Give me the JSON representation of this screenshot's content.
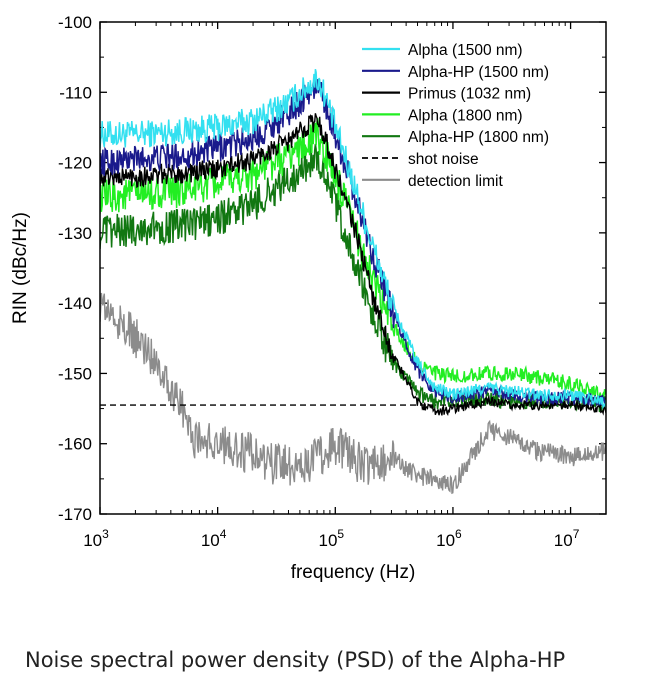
{
  "caption": "Noise spectral power density (PSD) of the Alpha-HP",
  "chart_data": {
    "type": "line",
    "xlabel": "frequency (Hz)",
    "ylabel": "RIN (dBc/Hz)",
    "xscale": "log",
    "xlim": [
      1000,
      20000000
    ],
    "ylim": [
      -170,
      -100
    ],
    "yticks": [
      -100,
      -110,
      -120,
      -130,
      -140,
      -150,
      -160,
      -170
    ],
    "xticks": [
      {
        "value": 1000,
        "base": "10",
        "exp": "3"
      },
      {
        "value": 10000,
        "base": "10",
        "exp": "4"
      },
      {
        "value": 100000,
        "base": "10",
        "exp": "5"
      },
      {
        "value": 1000000,
        "base": "10",
        "exp": "6"
      },
      {
        "value": 10000000,
        "base": "10",
        "exp": "7"
      }
    ],
    "grid": false,
    "legend_position": "top-right",
    "series": [
      {
        "name": "Alpha (1500 nm)",
        "color": "#33e0f0",
        "width": 1.5,
        "dash": "",
        "noise": 2.0,
        "x": [
          1000,
          2000,
          5000,
          10000,
          20000,
          40000,
          60000,
          70000,
          80000,
          100000,
          150000,
          200000,
          300000,
          500000,
          700000,
          1000000,
          2000000,
          3000000,
          5000000,
          10000000,
          20000000
        ],
        "y": [
          -116,
          -116,
          -115.5,
          -115,
          -114,
          -111.5,
          -109,
          -108,
          -110,
          -115,
          -124,
          -131,
          -140,
          -148.5,
          -152,
          -153,
          -152,
          -152.5,
          -153,
          -153,
          -154
        ]
      },
      {
        "name": "Alpha-HP (1500 nm)",
        "color": "#1a1a8c",
        "width": 1.5,
        "dash": "",
        "noise": 2.0,
        "x": [
          1000,
          2000,
          5000,
          10000,
          20000,
          40000,
          60000,
          70000,
          80000,
          100000,
          150000,
          200000,
          300000,
          500000,
          700000,
          1000000,
          2000000,
          3000000,
          5000000,
          10000000,
          20000000
        ],
        "y": [
          -120,
          -119.5,
          -119,
          -118,
          -116.5,
          -113,
          -110,
          -109,
          -111,
          -116,
          -125,
          -132,
          -141,
          -149.5,
          -152.5,
          -153.5,
          -152.5,
          -153,
          -153.5,
          -153.5,
          -154
        ]
      },
      {
        "name": "Primus (1032 nm)",
        "color": "#000000",
        "width": 1.4,
        "dash": "",
        "noise": 1.5,
        "x": [
          1000,
          2000,
          5000,
          10000,
          20000,
          40000,
          60000,
          70000,
          80000,
          100000,
          150000,
          200000,
          300000,
          500000,
          700000,
          1000000,
          2000000,
          3000000,
          5000000,
          10000000,
          20000000
        ],
        "y": [
          -122,
          -122,
          -121.5,
          -121,
          -119.5,
          -117,
          -114.5,
          -114,
          -116,
          -121,
          -130,
          -138,
          -147,
          -154,
          -155.5,
          -155,
          -154,
          -154.5,
          -154.5,
          -154.5,
          -155
        ]
      },
      {
        "name": "Alpha (1800 nm)",
        "color": "#22ee22",
        "width": 1.5,
        "dash": "",
        "noise": 2.5,
        "x": [
          1000,
          2000,
          5000,
          10000,
          20000,
          40000,
          60000,
          70000,
          80000,
          100000,
          150000,
          200000,
          300000,
          500000,
          700000,
          1000000,
          2000000,
          3000000,
          5000000,
          10000000,
          20000000
        ],
        "y": [
          -125,
          -124.5,
          -124,
          -123,
          -121.5,
          -119,
          -117,
          -116,
          -118,
          -122,
          -130,
          -136,
          -143,
          -148.5,
          -150,
          -150.5,
          -150,
          -150,
          -150.5,
          -151.5,
          -153
        ]
      },
      {
        "name": "Alpha-HP (1800 nm)",
        "color": "#117711",
        "width": 1.5,
        "dash": "",
        "noise": 2.5,
        "x": [
          1000,
          2000,
          5000,
          10000,
          20000,
          40000,
          60000,
          70000,
          80000,
          100000,
          150000,
          200000,
          300000,
          500000,
          700000,
          1000000,
          2000000,
          3000000,
          5000000,
          10000000,
          20000000
        ],
        "y": [
          -130,
          -129.5,
          -129,
          -128,
          -126,
          -122.5,
          -120,
          -119,
          -121,
          -126,
          -135,
          -141,
          -148,
          -153,
          -154,
          -154,
          -153.5,
          -154,
          -154,
          -154,
          -154.5
        ]
      },
      {
        "name": "shot noise",
        "color": "#000000",
        "width": 1.3,
        "dash": "6,4",
        "noise": 0,
        "x": [
          1000,
          20000000
        ],
        "y": [
          -154.5,
          -154.5
        ]
      },
      {
        "name": "detection limit",
        "color": "#8c8c8c",
        "width": 1.4,
        "dash": "",
        "noise": 3.0,
        "x": [
          1000,
          1500,
          2000,
          3000,
          5000,
          6000,
          10000,
          20000,
          30000,
          50000,
          70000,
          100000,
          150000,
          200000,
          300000,
          500000,
          700000,
          1000000,
          2000000,
          3000000,
          5000000,
          8000000,
          10000000,
          15000000,
          20000000
        ],
        "y": [
          -140,
          -143,
          -145,
          -148,
          -155,
          -159,
          -160,
          -161.5,
          -163,
          -163,
          -162,
          -160,
          -162.5,
          -163,
          -162,
          -164.5,
          -165,
          -166,
          -158,
          -159,
          -161,
          -161.5,
          -162,
          -161.5,
          -161
        ]
      }
    ]
  }
}
